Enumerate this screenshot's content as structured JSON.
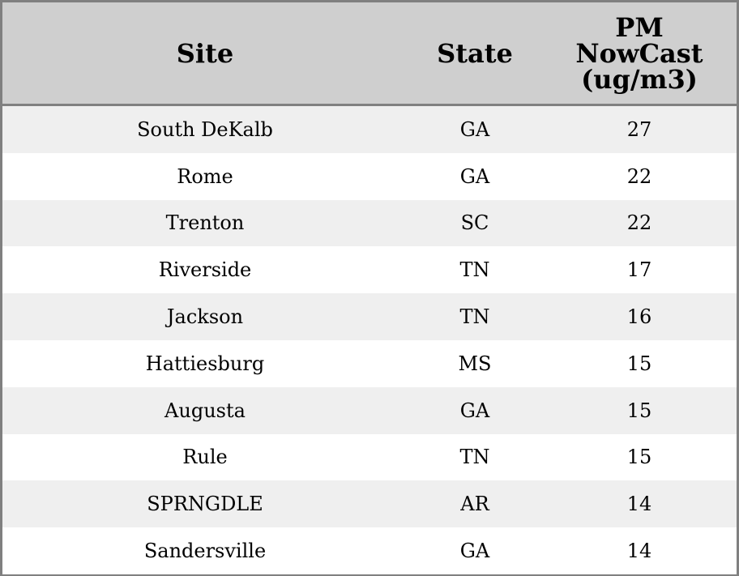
{
  "chart_data": {
    "type": "table",
    "columns": [
      "Site",
      "State",
      "PM NowCast (ug/m3)"
    ],
    "header_lines": {
      "pm": [
        "PM",
        "NowCast",
        "(ug/m3)"
      ]
    },
    "rows": [
      [
        "South DeKalb",
        "GA",
        "27"
      ],
      [
        "Rome",
        "GA",
        "22"
      ],
      [
        "Trenton",
        "SC",
        "22"
      ],
      [
        "Riverside",
        "TN",
        "17"
      ],
      [
        "Jackson",
        "TN",
        "16"
      ],
      [
        "Hattiesburg",
        "MS",
        "15"
      ],
      [
        "Augusta",
        "GA",
        "15"
      ],
      [
        "Rule",
        "TN",
        "15"
      ],
      [
        "SPRNGDLE",
        "AR",
        "14"
      ],
      [
        "Sandersville",
        "GA",
        "14"
      ]
    ],
    "colors": {
      "header_bg": "#cfcfcf",
      "stripe": "#efefef",
      "border": "#808080"
    }
  }
}
